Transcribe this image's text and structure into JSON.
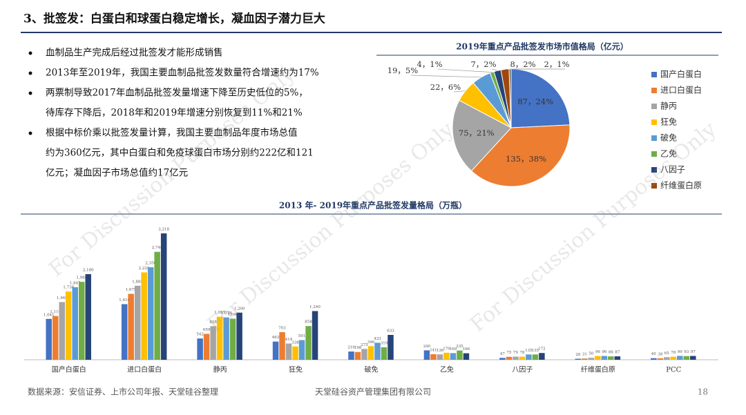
{
  "header": {
    "title": "3、批签发：白蛋白和球蛋白稳定增长，凝血因子潜力巨大"
  },
  "bullets": [
    [
      "血制品生产完成后经过批签发才能形成销售"
    ],
    [
      "2013年至2019年，我国主要血制品批签发数量符合增速约为17%"
    ],
    [
      "两票制导致2017年血制品批签发量增速下降至历史低位的5%，",
      "待库存下降后，2018年和2019年增速分别恢复到11%和21%"
    ],
    [
      "根据中标价乘以批签发量计算，我国主要血制品年度市场总值",
      "约为360亿元，其中白蛋白和免疫球蛋白市场分别约222亿和121",
      "亿元；凝血因子市场总值约17亿元"
    ]
  ],
  "chart_data": [
    {
      "type": "pie",
      "title": "2019年重点产品批签发市场市值格局（亿元）",
      "categories": [
        "国产白蛋白",
        "进口白蛋白",
        "静丙",
        "狂免",
        "破免",
        "乙免",
        "八因子",
        "纤维蛋白原",
        null
      ],
      "values": [
        87,
        135,
        75,
        22,
        19,
        4,
        7,
        8,
        2
      ],
      "value_labels": [
        "87，24%",
        "135，38%",
        "75，21%",
        "22，6%",
        "19，5%",
        "4，1%",
        "7，2%",
        "8，2%",
        "2，1%"
      ],
      "colors": [
        "#4472c4",
        "#ed7d31",
        "#a5a5a5",
        "#ffc000",
        "#5b9bd5",
        "#70ad47",
        "#264478",
        "#9e480e",
        "#636363"
      ],
      "legend": "right"
    },
    {
      "type": "bar",
      "title": "2013 年- 2019年重点产品批签发量格局（万瓶）",
      "categories": [
        "国产白蛋白",
        "进口白蛋白",
        "静丙",
        "狂免",
        "破免",
        "乙免",
        "八因子",
        "纤维蛋白原",
        "PCC"
      ],
      "series": [
        {
          "color": "#4472c4",
          "values": [
            1041,
            1416,
            542,
            463,
            210,
            240,
            47,
            26,
            40
          ],
          "value_labels": [
            "1,041",
            "1,416",
            "542",
            "463",
            "210",
            "240",
            "47",
            "26",
            "40"
          ]
        },
        {
          "color": "#ed7d31",
          "values": [
            1114,
            1679,
            659,
            703,
            198,
            141,
            75,
            31,
            38
          ],
          "value_labels": [
            "1,114",
            "1,679",
            "659",
            "703",
            "198",
            "141",
            "75",
            "31",
            "38"
          ]
        },
        {
          "color": "#a5a5a5",
          "values": [
            1469,
            1885,
            855,
            414,
            275,
            136,
            79,
            50,
            65
          ],
          "value_labels": [
            "1,469",
            "1,885",
            "855",
            "414",
            "275",
            "136",
            "79",
            "50",
            "65"
          ]
        },
        {
          "color": "#ffc000",
          "values": [
            1738,
            2225,
            1097,
            338,
            346,
            179,
            78,
            96,
            78
          ],
          "value_labels": [
            "1,738",
            "2,225",
            "1,097",
            "338",
            "346",
            "179",
            "78",
            "96",
            "78"
          ]
        },
        {
          "color": "#5b9bd5",
          "values": [
            1847,
            2356,
            1078,
            501,
            433,
            169,
            135,
            96,
            99
          ],
          "value_labels": [
            "1,847",
            "2,356",
            "1,078",
            "501",
            "433",
            "169",
            "135",
            "96",
            "99"
          ]
        },
        {
          "color": "#70ad47",
          "values": [
            1984,
            2748,
            1046,
            858,
            319,
            235,
            135,
            86,
            93
          ],
          "value_labels": [
            "1,984",
            "2,748",
            "1,046",
            "858",
            "319",
            "235",
            "135",
            "86",
            "93"
          ]
        },
        {
          "color": "#264478",
          "values": [
            2180,
            3218,
            1200,
            1240,
            633,
            166,
            172,
            87,
            97
          ],
          "value_labels": [
            "2,180",
            "3,218",
            "1,200",
            "1,240",
            "633",
            "166",
            "172",
            "87",
            "97"
          ]
        }
      ]
    }
  ],
  "watermark": "For Discussion Purposes Only",
  "footer": {
    "source": "数据来源：安信证券、上市公司年报、天堂硅谷整理",
    "company": "天堂硅谷资产管理集团有限公司",
    "page": "18"
  }
}
